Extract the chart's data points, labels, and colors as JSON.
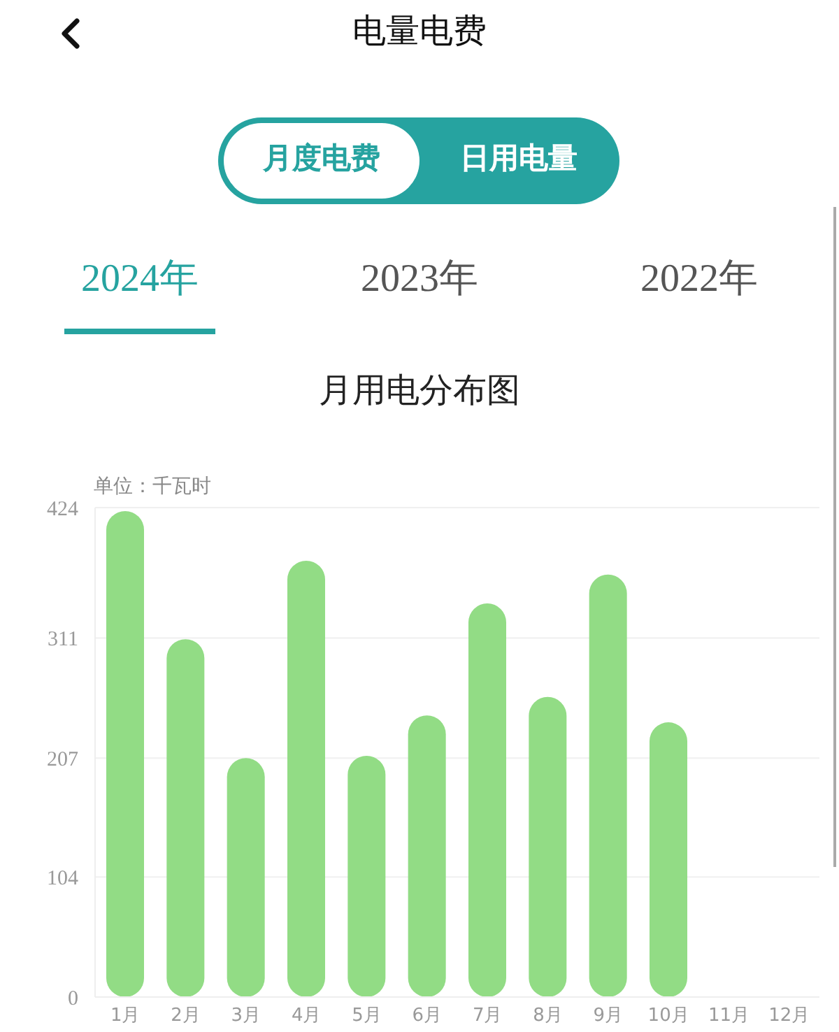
{
  "chart_data": {
    "type": "bar",
    "title": "月用电分布图",
    "ylabel": "单位：千瓦时",
    "annotations": [
      "电量电费",
      "月度电费",
      "日用电量",
      "2024年",
      "2023年",
      "2022年"
    ],
    "categories": [
      "1月",
      "2月",
      "3月",
      "4月",
      "5月",
      "6月",
      "7月",
      "8月",
      "9月",
      "10月",
      "11月",
      "12月"
    ],
    "values": [
      421,
      310,
      207,
      378,
      209,
      244,
      341,
      260,
      366,
      238,
      null,
      null
    ],
    "color": "#92dc85",
    "ylim": [
      0,
      424
    ],
    "yticks": [
      0,
      104,
      207,
      311,
      424
    ],
    "grid": "y"
  }
}
